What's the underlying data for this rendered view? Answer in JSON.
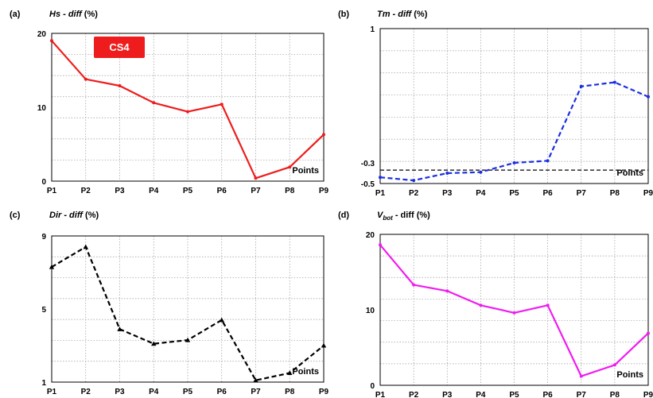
{
  "chart_data": [
    {
      "type": "line",
      "panel": "(a)",
      "title_main": "Hs - diff",
      "title_unit": " (%)",
      "xlabel": "Points",
      "categories": [
        "P1",
        "P2",
        "P3",
        "P4",
        "P5",
        "P6",
        "P7",
        "P8",
        "P9"
      ],
      "ylim": [
        0,
        20
      ],
      "yticks": [
        "0",
        "10",
        "20"
      ],
      "ytick_values": [
        0,
        10,
        20
      ],
      "series": [
        {
          "values": [
            19.0,
            13.8,
            12.9,
            10.6,
            9.4,
            10.4,
            0.4,
            1.9,
            6.3
          ],
          "color": "#ee1c1c",
          "dash": "solid",
          "marker": "point"
        }
      ],
      "badge": {
        "text": "CS4",
        "color": "#ee1c1c"
      }
    },
    {
      "type": "line",
      "panel": "(b)",
      "title_main": "Tm - diff",
      "title_unit": " (%)",
      "xlabel": "Points",
      "categories": [
        "P1",
        "P2",
        "P3",
        "P4",
        "P5",
        "P6",
        "P7",
        "P8",
        "P9"
      ],
      "ylim": [
        -0.5,
        1
      ],
      "yticks": [
        "-0.5",
        "-0.3",
        "1"
      ],
      "ytick_values": [
        -0.5,
        -0.3,
        1
      ],
      "series": [
        {
          "values": [
            -0.44,
            -0.47,
            -0.4,
            -0.39,
            -0.3,
            -0.28,
            0.44,
            0.48,
            0.34
          ],
          "color": "#1c2fe0",
          "dash": "dashed",
          "marker": "point"
        }
      ],
      "reference_line": {
        "y": -0.37,
        "color": "#000000",
        "dash": "dashed"
      }
    },
    {
      "type": "line",
      "panel": "(c)",
      "title_main": "Dir - diff",
      "title_unit": " (%)",
      "xlabel": "Points",
      "categories": [
        "P1",
        "P2",
        "P3",
        "P4",
        "P5",
        "P6",
        "P7",
        "P8",
        "P9"
      ],
      "ylim": [
        1,
        9
      ],
      "yticks": [
        "1",
        "5",
        "9"
      ],
      "ytick_values": [
        1,
        5,
        9
      ],
      "series": [
        {
          "values": [
            7.3,
            8.4,
            3.9,
            3.1,
            3.3,
            4.4,
            1.1,
            1.5,
            3.0
          ],
          "color": "#000000",
          "dash": "dashed",
          "marker": "triangle"
        }
      ]
    },
    {
      "type": "line",
      "panel": "(d)",
      "title_main": "V",
      "title_sub": "bot",
      "title_unit": " - diff (%)",
      "xlabel": "Points",
      "categories": [
        "P1",
        "P2",
        "P3",
        "P4",
        "P5",
        "P6",
        "P7",
        "P8",
        "P9"
      ],
      "ylim": [
        0,
        20
      ],
      "yticks": [
        "0",
        "10",
        "20"
      ],
      "ytick_values": [
        0,
        10,
        20
      ],
      "series": [
        {
          "values": [
            18.6,
            13.3,
            12.5,
            10.6,
            9.6,
            10.6,
            1.2,
            2.7,
            6.9
          ],
          "color": "#f01cf0",
          "dash": "solid",
          "marker": "point"
        }
      ]
    }
  ]
}
